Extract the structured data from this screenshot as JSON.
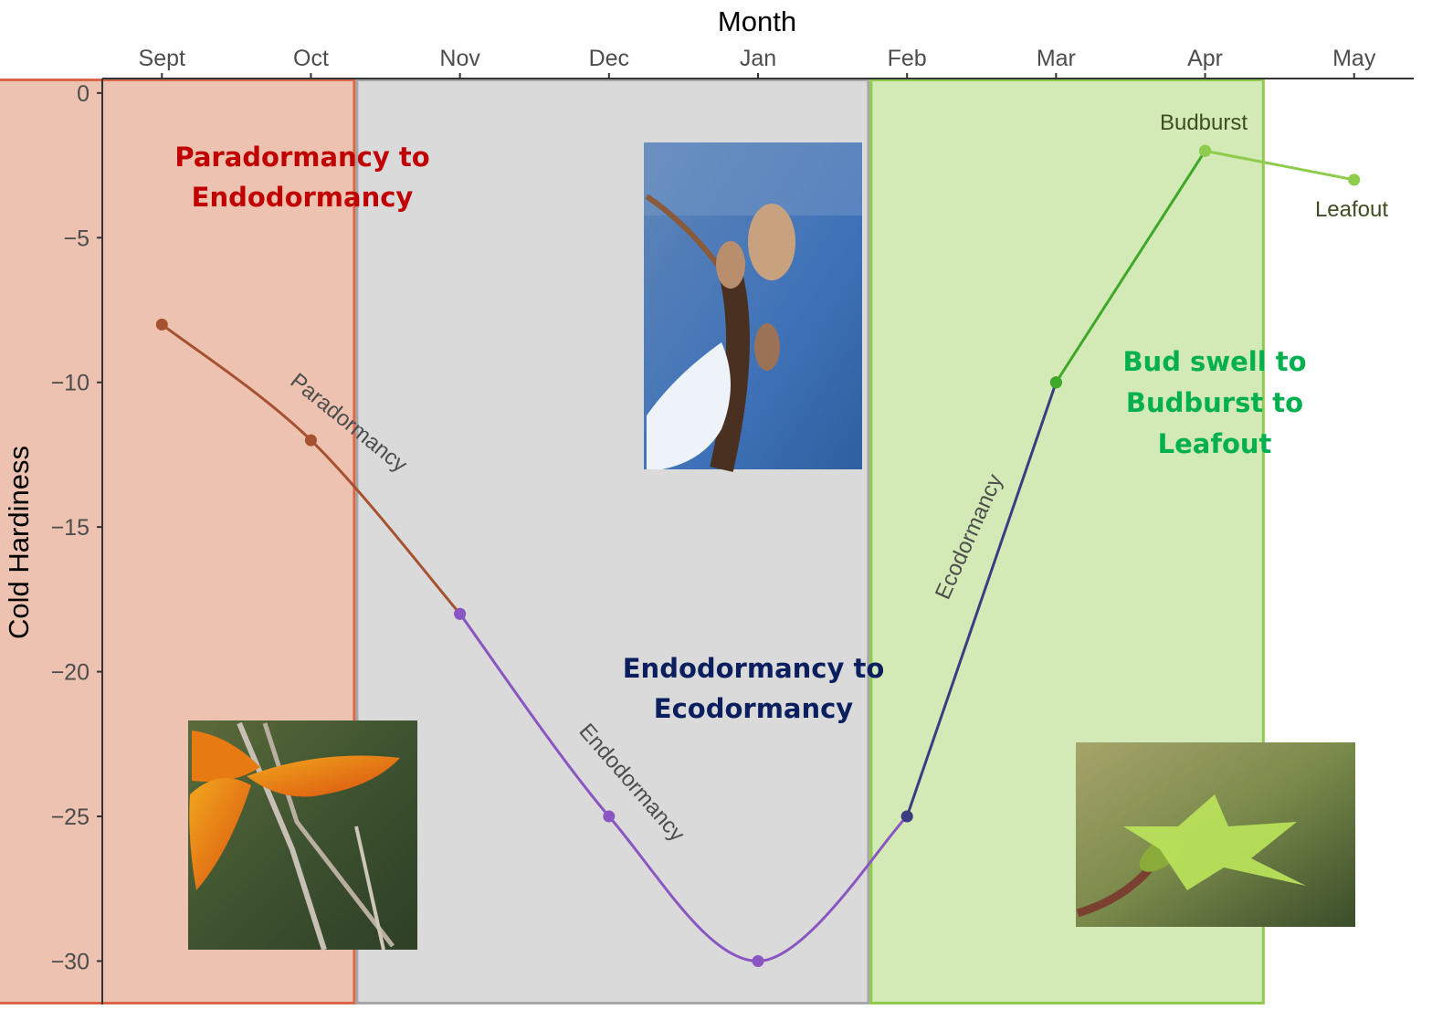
{
  "colors": {
    "paradormancy_fill": "#edc2b0",
    "paradormancy_border": "#d9684a",
    "endodormancy_fill": "#dadada",
    "endodormancy_border": "#a6a6a6",
    "ecodormancy_fill": "#d4eab6",
    "ecodormancy_border": "#8fcc4e",
    "paradormancy_line": "#a65230",
    "endodormancy_line": "#8a56c2",
    "ecodormancy_line": "#3c3d80",
    "budburst_line": "#3fa828",
    "leafout_line": "#8fcc4e",
    "title_para": "#c00000",
    "title_endo": "#0b1f5e",
    "title_bud": "#00b04f"
  },
  "regions": [
    {
      "id": "paradormancy",
      "title_lines": [
        "Paradormancy to",
        "Endodormancy"
      ],
      "x_start": 7.6,
      "x_end": 10.3,
      "icon": "autumn-leaf-photo"
    },
    {
      "id": "endodormancy",
      "title_lines": [
        "Endodormancy to",
        "Ecodormancy"
      ],
      "x_start": 10.3,
      "x_end": 13.75,
      "icon": "winter-bud-snow-photo"
    },
    {
      "id": "ecodormancy",
      "title_lines": [
        "Bud swell to",
        "Budburst to",
        "Leafout"
      ],
      "x_start": 13.75,
      "x_end": 16.4,
      "icon": "spring-leafout-photo"
    }
  ],
  "curve_labels": {
    "paradormancy": "Paradormancy",
    "endodormancy": "Endodormancy",
    "ecodormancy": "Ecodormancy",
    "budburst": "Budburst",
    "leafout": "Leafout"
  },
  "chart_data": {
    "type": "line",
    "xlabel": "Month",
    "ylabel": "Cold Hardiness",
    "x_axis_position": "top",
    "categories": [
      "Sept",
      "Oct",
      "Nov",
      "Dec",
      "Jan",
      "Feb",
      "Mar",
      "Apr",
      "May"
    ],
    "x": [
      9,
      10,
      11,
      12,
      13,
      14,
      15,
      16,
      17
    ],
    "xlim": [
      8.6,
      17.4
    ],
    "ylim": [
      -31.5,
      0.5
    ],
    "yticks": [
      0,
      -5,
      -10,
      -15,
      -20,
      -25,
      -30
    ],
    "grid": false,
    "series": [
      {
        "name": "Paradormancy",
        "x": [
          9,
          10,
          11
        ],
        "values": [
          -8,
          -12,
          -18
        ]
      },
      {
        "name": "Endodormancy",
        "x": [
          11,
          12,
          13,
          14
        ],
        "values": [
          -18,
          -25,
          -30,
          -25
        ]
      },
      {
        "name": "Ecodormancy",
        "x": [
          14,
          15
        ],
        "values": [
          -25,
          -10
        ]
      },
      {
        "name": "Budburst",
        "x": [
          15,
          16
        ],
        "values": [
          -10,
          -2
        ]
      },
      {
        "name": "Leafout",
        "x": [
          16,
          17
        ],
        "values": [
          -2,
          -3
        ]
      }
    ]
  }
}
